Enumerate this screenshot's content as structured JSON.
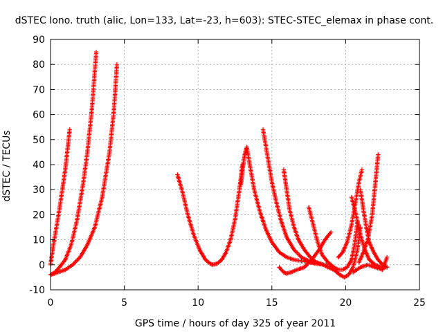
{
  "chart_data": {
    "type": "scatter",
    "title": "dSTEC Iono. truth (alic, Lon=133, Lat=-23, h=603): STEC-STEC_elemax in phase cont.",
    "xlabel": "GPS time / hours of day 325 of year 2011",
    "ylabel": "dSTEC  / TECUs",
    "xlim": [
      0,
      25
    ],
    "ylim": [
      -10,
      90
    ],
    "xticks": [
      0,
      5,
      10,
      15,
      20,
      25
    ],
    "yticks": [
      -10,
      0,
      10,
      20,
      30,
      40,
      50,
      60,
      70,
      80,
      90
    ],
    "grid": true,
    "marker": "+",
    "color": "#ff0000",
    "series": [
      {
        "x": [
          0.0,
          0.2,
          0.4,
          0.6,
          0.8,
          1.0,
          1.15,
          1.3
        ],
        "y": [
          0,
          8,
          15,
          22,
          30,
          38,
          46,
          54
        ]
      },
      {
        "x": [
          0.0,
          0.3,
          0.6,
          1.0,
          1.4,
          1.8,
          2.2,
          2.5,
          2.8,
          3.1
        ],
        "y": [
          -4,
          -3,
          -1,
          2,
          8,
          18,
          32,
          45,
          62,
          85
        ]
      },
      {
        "x": [
          0.0,
          0.5,
          1.0,
          1.5,
          2.0,
          2.5,
          3.0,
          3.5,
          4.0,
          4.3,
          4.5
        ],
        "y": [
          -4,
          -3,
          -2,
          0,
          3,
          8,
          15,
          27,
          45,
          62,
          80
        ]
      },
      {
        "x": [
          8.6,
          8.9,
          9.3,
          9.7,
          10.1,
          10.5,
          10.8,
          11.0,
          11.3,
          11.6,
          11.9,
          12.2,
          12.5,
          12.8,
          13.0
        ],
        "y": [
          36,
          30,
          20,
          12,
          6,
          2,
          0.5,
          0,
          0.5,
          2,
          5,
          10,
          18,
          30,
          40
        ]
      },
      {
        "x": [
          12.9,
          13.0,
          13.1,
          13.2,
          13.3
        ],
        "y": [
          32,
          37,
          42,
          45,
          47
        ]
      },
      {
        "x": [
          13.3,
          13.5,
          13.8,
          14.2,
          14.6,
          15.0,
          15.5,
          16.0,
          16.5,
          17.0,
          17.5,
          18.0
        ],
        "y": [
          47,
          40,
          30,
          21,
          14,
          9,
          5,
          3,
          2,
          1.5,
          1,
          0.5
        ]
      },
      {
        "x": [
          14.4,
          14.6,
          14.8,
          15.0,
          15.3,
          15.6,
          16.0,
          16.5,
          17.0,
          17.5,
          18.0,
          18.5
        ],
        "y": [
          54,
          47,
          40,
          33,
          25,
          18,
          11,
          6,
          3,
          1.5,
          0.5,
          0
        ]
      },
      {
        "x": [
          15.8,
          16.0,
          16.2,
          16.5,
          16.8,
          17.2,
          17.6,
          18.0,
          18.5,
          19.0
        ],
        "y": [
          38,
          30,
          22,
          15,
          10,
          6,
          3,
          1,
          0,
          0
        ]
      },
      {
        "x": [
          15.5,
          15.8,
          16.0,
          16.3,
          16.7,
          17.2,
          17.7,
          18.2,
          18.6,
          19.0
        ],
        "y": [
          -1,
          -3,
          -3.5,
          -3,
          -2,
          -1,
          2,
          6,
          10,
          13
        ]
      },
      {
        "x": [
          17.5,
          17.8,
          18.1,
          18.4,
          18.8,
          19.2,
          19.5,
          19.8,
          20.1,
          20.4,
          20.6,
          20.8
        ],
        "y": [
          23,
          16,
          9,
          4,
          1,
          -1,
          -2,
          -2,
          -1,
          2,
          8,
          17
        ]
      },
      {
        "x": [
          18.5,
          18.8,
          19.2,
          19.6,
          19.9,
          20.2,
          20.5,
          20.8,
          21.0
        ],
        "y": [
          0,
          -1,
          -2,
          -4,
          -5,
          -4,
          -1,
          6,
          15
        ]
      },
      {
        "x": [
          19.5,
          19.8,
          20.1,
          20.4,
          20.7,
          20.9,
          21.1
        ],
        "y": [
          3,
          5,
          9,
          16,
          26,
          33,
          38
        ]
      },
      {
        "x": [
          20.4,
          20.7,
          21.0,
          21.3,
          21.6,
          22.0,
          22.4,
          22.8
        ],
        "y": [
          27,
          20,
          12,
          6,
          2,
          0,
          -1,
          -1
        ]
      },
      {
        "x": [
          21.0,
          21.2,
          21.4,
          21.6,
          21.9,
          22.2,
          22.5,
          22.8
        ],
        "y": [
          30,
          22,
          15,
          9,
          5,
          2,
          0,
          -1
        ]
      },
      {
        "x": [
          20.9,
          21.2,
          21.5,
          21.8,
          22.0,
          22.2
        ],
        "y": [
          1,
          5,
          10,
          20,
          32,
          44
        ]
      },
      {
        "x": [
          20.5,
          21.0,
          21.5,
          22.0,
          22.5,
          22.8
        ],
        "y": [
          -3,
          -1,
          0,
          -1,
          -2,
          3
        ]
      }
    ]
  }
}
